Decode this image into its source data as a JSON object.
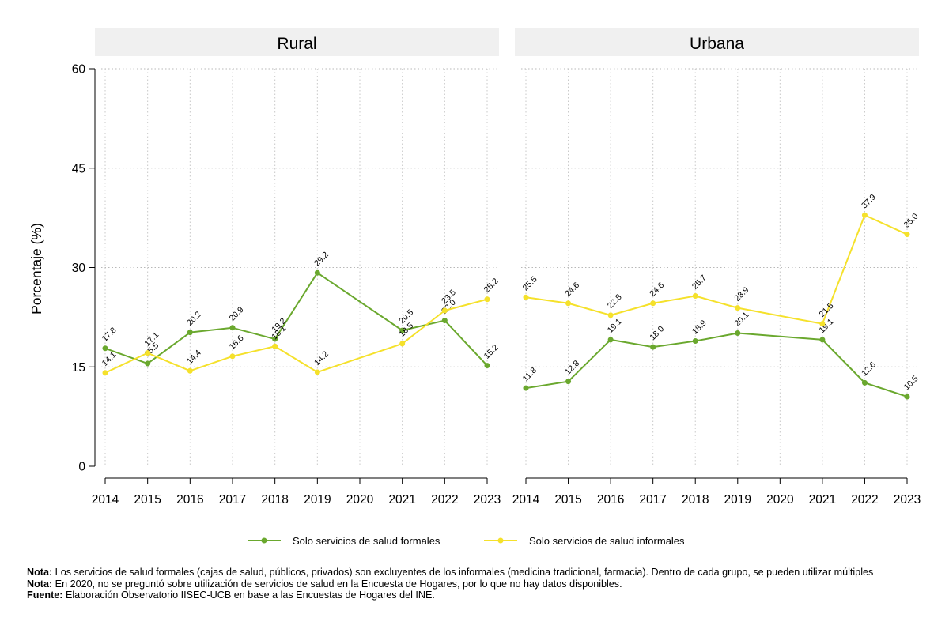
{
  "chart_data": {
    "type": "line",
    "ylabel": "Porcentaje (%)",
    "ylim": [
      0,
      60
    ],
    "yticks": [
      0,
      15,
      30,
      45,
      60
    ],
    "x": [
      2014,
      2015,
      2016,
      2017,
      2018,
      2019,
      2020,
      2021,
      2022,
      2023
    ],
    "grid": true,
    "legend_position": "bottom",
    "colors": {
      "formales": "#6aa82e",
      "informales": "#f5e12b",
      "panel_bg": "#f0f0f0"
    },
    "panels": [
      {
        "title": "Rural",
        "series": [
          {
            "name": "Solo servicios de salud formales",
            "key": "formales",
            "values": [
              17.8,
              15.5,
              20.2,
              20.9,
              19.2,
              29.2,
              null,
              20.5,
              22.0,
              15.2
            ],
            "labels": [
              "17.8",
              "15.5",
              "20.2",
              "20.9",
              "19.2",
              "29.2",
              null,
              "20.5",
              "22.0",
              "15.2"
            ]
          },
          {
            "name": "Solo servicios de salud informales",
            "key": "informales",
            "values": [
              14.1,
              17.1,
              14.4,
              16.6,
              18.1,
              14.2,
              null,
              18.5,
              23.5,
              25.2
            ],
            "labels": [
              "14.1",
              "17.1",
              "14.4",
              "16.6",
              "18.1",
              "14.2",
              null,
              "18.5",
              "23.5",
              "25.2"
            ]
          }
        ]
      },
      {
        "title": "Urbana",
        "series": [
          {
            "name": "Solo servicios de salud formales",
            "key": "formales",
            "values": [
              11.8,
              12.8,
              19.1,
              18.0,
              18.9,
              20.1,
              null,
              19.1,
              12.6,
              10.5
            ],
            "labels": [
              "11.8",
              "12.8",
              "19.1",
              "18.0",
              "18.9",
              "20.1",
              null,
              "19.1",
              "12.6",
              "10.5"
            ]
          },
          {
            "name": "Solo servicios de salud informales",
            "key": "informales",
            "values": [
              25.5,
              24.6,
              22.8,
              24.6,
              25.7,
              23.9,
              null,
              21.5,
              37.9,
              35.0
            ],
            "labels": [
              "25.5",
              "24.6",
              "22.8",
              "24.6",
              "25.7",
              "23.9",
              null,
              "21.5",
              "37.9",
              "35.0"
            ]
          }
        ]
      }
    ],
    "legend": [
      "Solo servicios de salud formales",
      "Solo servicios de salud informales"
    ]
  },
  "notes": [
    {
      "label": "Nota:",
      "text": " Los servicios de salud formales (cajas de salud, públicos, privados) son excluyentes de los informales (medicina tradicional, farmacia). Dentro de cada grupo, se pueden utilizar múltiples"
    },
    {
      "label": "Nota:",
      "text": " En 2020, no se preguntó sobre utilización de servicios de salud en la Encuesta de Hogares, por lo que no hay datos disponibles."
    },
    {
      "label": "Fuente:",
      "text": " Elaboración Observatorio IISEC-UCB en base a las Encuestas de Hogares del INE."
    }
  ]
}
